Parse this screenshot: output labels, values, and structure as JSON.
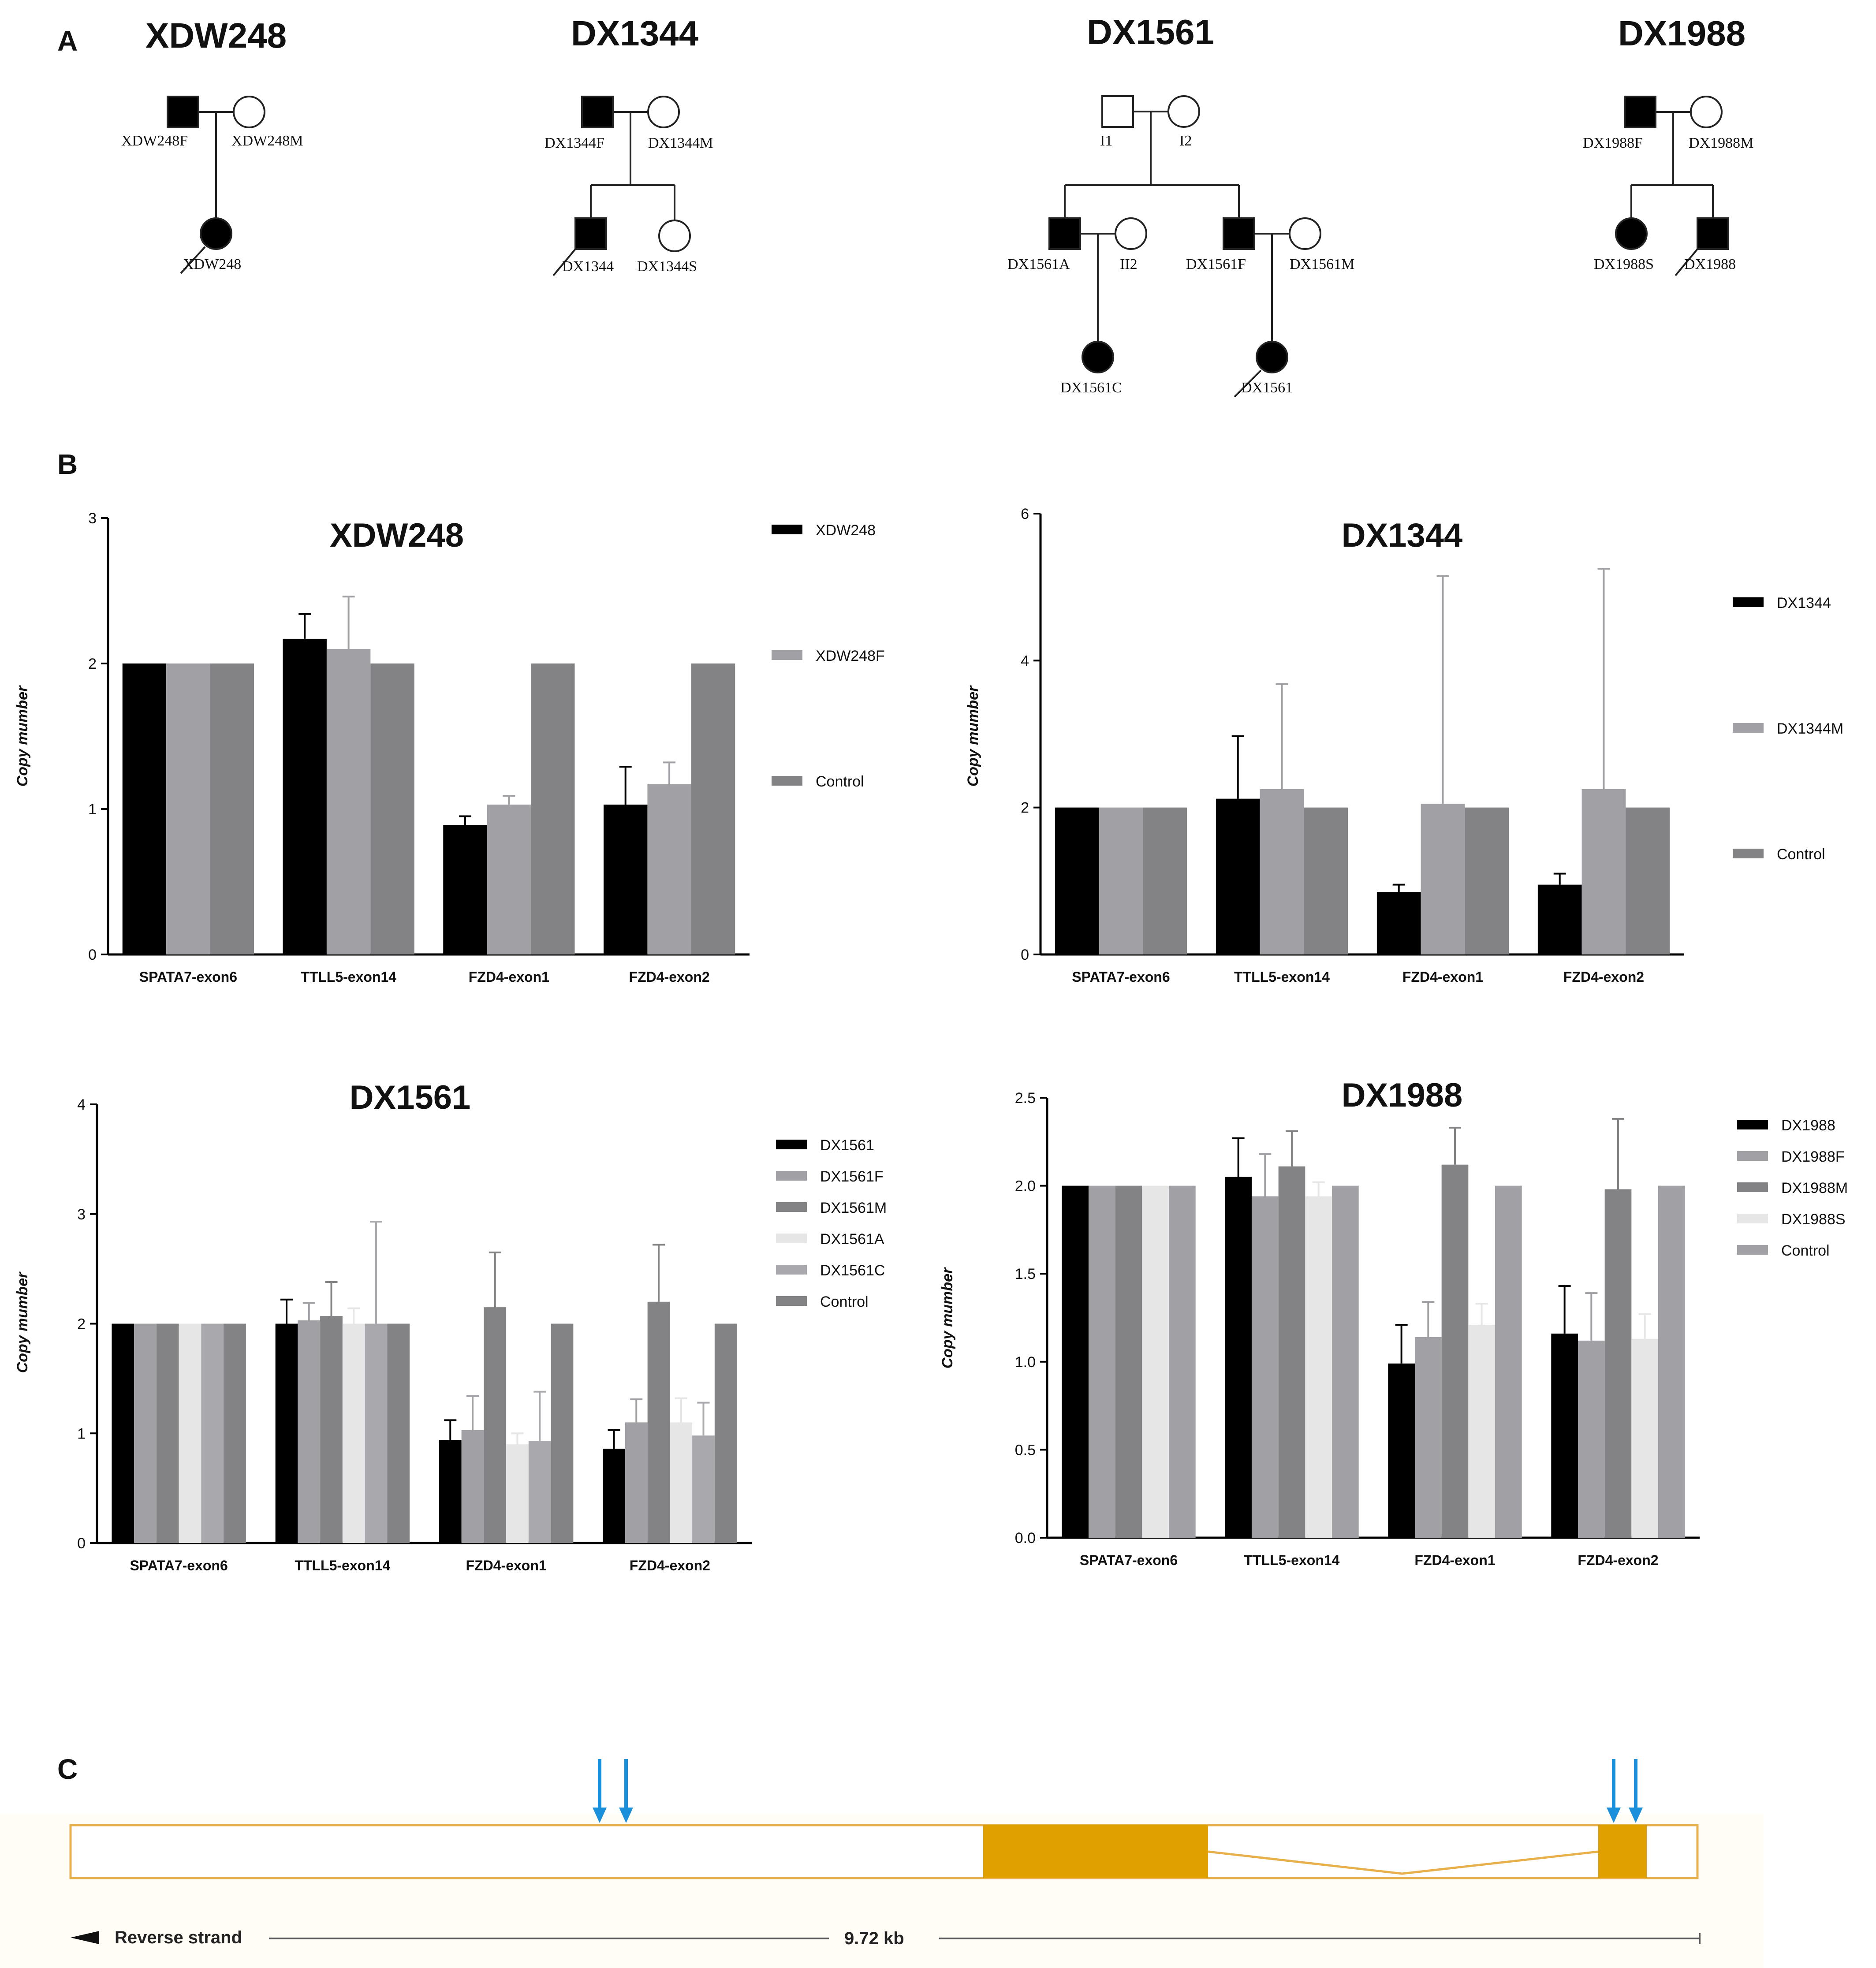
{
  "panels": {
    "a": "A",
    "b": "B",
    "c": "C"
  },
  "pedigrees": [
    {
      "title": "XDW248",
      "members": {
        "f": "XDW248F",
        "m": "XDW248M",
        "p": "XDW248"
      }
    },
    {
      "title": "DX1344",
      "members": {
        "f": "DX1344F",
        "m": "DX1344M",
        "p": "DX1344",
        "s": "DX1344S"
      }
    },
    {
      "title": "DX1561",
      "members": {
        "i1": "I1",
        "i2": "I2",
        "a": "DX1561A",
        "ii2": "II2",
        "f": "DX1561F",
        "m": "DX1561M",
        "c": "DX1561C",
        "p": "DX1561"
      }
    },
    {
      "title": "DX1988",
      "members": {
        "f": "DX1988F",
        "m": "DX1988M",
        "s": "DX1988S",
        "p": "DX1988"
      }
    }
  ],
  "chart_data": [
    {
      "type": "bar",
      "title": "XDW248",
      "ylabel": "Copy mumber",
      "categories": [
        "SPATA7-exon6",
        "TTLL5-exon14",
        "FZD4-exon1",
        "FZD4-exon2"
      ],
      "ylim": [
        0,
        3
      ],
      "yticks": [
        "0",
        "1",
        "2",
        "3"
      ],
      "series": [
        {
          "name": "XDW248",
          "color": "#000000",
          "values": [
            2.0,
            2.17,
            0.89,
            1.03
          ],
          "errors": [
            0,
            0.17,
            0.06,
            0.26
          ]
        },
        {
          "name": "XDW248F",
          "color": "#a1a1a5",
          "values": [
            2.0,
            2.1,
            1.03,
            1.17
          ],
          "errors": [
            0,
            0.36,
            0.06,
            0.15
          ]
        },
        {
          "name": "Control",
          "color": "#838386",
          "values": [
            2.0,
            2.0,
            2.0,
            2.0
          ],
          "errors": [
            0,
            0,
            0,
            0
          ]
        }
      ]
    },
    {
      "type": "bar",
      "title": "DX1344",
      "ylabel": "Copy mumber",
      "categories": [
        "SPATA7-exon6",
        "TTLL5-exon14",
        "FZD4-exon1",
        "FZD4-exon2"
      ],
      "ylim": [
        0,
        6
      ],
      "yticks": [
        "0",
        "2",
        "4",
        "6"
      ],
      "series": [
        {
          "name": "DX1344",
          "color": "#000000",
          "values": [
            2.0,
            2.12,
            0.85,
            0.95
          ],
          "errors": [
            0,
            0.85,
            0.1,
            0.15
          ]
        },
        {
          "name": "DX1344M",
          "color": "#a1a1a5",
          "values": [
            2.0,
            2.25,
            2.05,
            2.25
          ],
          "errors": [
            0,
            1.43,
            3.1,
            3.0
          ]
        },
        {
          "name": "Control",
          "color": "#838386",
          "values": [
            2.0,
            2.0,
            2.0,
            2.0
          ],
          "errors": [
            0,
            0,
            0,
            0
          ]
        }
      ]
    },
    {
      "type": "bar",
      "title": "DX1561",
      "ylabel": "Copy mumber",
      "categories": [
        "SPATA7-exon6",
        "TTLL5-exon14",
        "FZD4-exon1",
        "FZD4-exon2"
      ],
      "ylim": [
        0,
        4
      ],
      "yticks": [
        "0",
        "1",
        "2",
        "3",
        "4"
      ],
      "series": [
        {
          "name": "DX1561",
          "color": "#000000",
          "values": [
            2.0,
            2.0,
            0.94,
            0.86
          ],
          "errors": [
            0,
            0.22,
            0.18,
            0.17
          ]
        },
        {
          "name": "DX1561F",
          "color": "#a1a1a5",
          "values": [
            2.0,
            2.03,
            1.03,
            1.1
          ],
          "errors": [
            0,
            0.16,
            0.31,
            0.21
          ]
        },
        {
          "name": "DX1561M",
          "color": "#838386",
          "values": [
            2.0,
            2.07,
            2.15,
            2.2
          ],
          "errors": [
            0,
            0.31,
            0.5,
            0.52
          ]
        },
        {
          "name": "DX1561A",
          "color": "#e6e6e6",
          "values": [
            2.0,
            2.0,
            0.9,
            1.1
          ],
          "errors": [
            0,
            0.14,
            0.1,
            0.22
          ]
        },
        {
          "name": "DX1561C",
          "color": "#a9a9ad",
          "values": [
            2.0,
            2.0,
            0.93,
            0.98
          ],
          "errors": [
            0,
            0.93,
            0.45,
            0.3
          ]
        },
        {
          "name": "Control",
          "color": "#838386",
          "values": [
            2.0,
            2.0,
            2.0,
            2.0
          ],
          "errors": [
            0,
            0,
            0,
            0
          ]
        }
      ]
    },
    {
      "type": "bar",
      "title": "DX1988",
      "ylabel": "Copy mumber",
      "categories": [
        "SPATA7-exon6",
        "TTLL5-exon14",
        "FZD4-exon1",
        "FZD4-exon2"
      ],
      "ylim": [
        0,
        2.5
      ],
      "yticks": [
        "0.0",
        "0.5",
        "1.0",
        "1.5",
        "2.0",
        "2.5"
      ],
      "series": [
        {
          "name": "DX1988",
          "color": "#000000",
          "values": [
            2.0,
            2.05,
            0.99,
            1.16
          ],
          "errors": [
            0,
            0.22,
            0.22,
            0.27
          ]
        },
        {
          "name": "DX1988F",
          "color": "#a1a1a5",
          "values": [
            2.0,
            1.94,
            1.14,
            1.12
          ],
          "errors": [
            0,
            0.24,
            0.2,
            0.27
          ]
        },
        {
          "name": "DX1988M",
          "color": "#838386",
          "values": [
            2.0,
            2.11,
            2.12,
            1.98
          ],
          "errors": [
            0,
            0.2,
            0.21,
            0.4
          ]
        },
        {
          "name": "DX1988S",
          "color": "#e6e6e6",
          "values": [
            2.0,
            1.94,
            1.21,
            1.13
          ],
          "errors": [
            0,
            0.08,
            0.12,
            0.14
          ]
        },
        {
          "name": "Control",
          "color": "#a1a1a5",
          "values": [
            2.0,
            2.0,
            2.0,
            2.0
          ],
          "errors": [
            0,
            0,
            0,
            0
          ]
        }
      ]
    }
  ],
  "gene": {
    "strand_label": "Reverse strand",
    "length_label": "9.72 kb",
    "colors": {
      "exon": "#e0a000",
      "outline": "#e8b04a",
      "utr_fill": "#fffaf0",
      "arrow": "#1a8fdc"
    }
  }
}
